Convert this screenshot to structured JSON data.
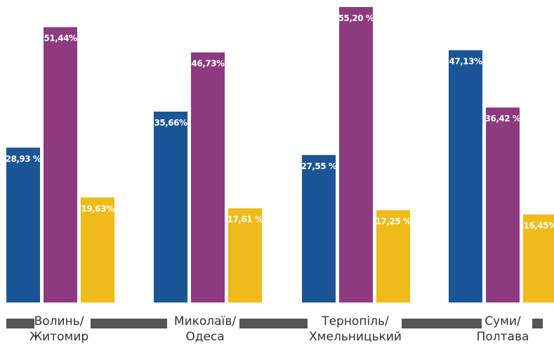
{
  "chart_data": {
    "type": "bar",
    "categories": [
      [
        "Волинь/",
        "Житомир"
      ],
      [
        "Миколаїв/",
        "Одеса"
      ],
      [
        "Тернопіль/",
        "Хмельницький"
      ],
      [
        "Суми/",
        "Полтава"
      ]
    ],
    "series": [
      {
        "color": "#1a5596",
        "values": [
          28.93,
          35.66,
          27.55,
          47.13
        ],
        "labels": [
          "28,93 %",
          "35,66%",
          "27,55 %",
          "47,13%"
        ]
      },
      {
        "color": "#8e3a7e",
        "values": [
          51.44,
          46.73,
          55.2,
          36.42
        ],
        "labels": [
          "51,44%",
          "46,73%",
          "55,20 %",
          "36,42 %"
        ]
      },
      {
        "color": "#f0bb18",
        "values": [
          19.63,
          17.61,
          17.25,
          16.45
        ],
        "labels": [
          "19,63%",
          "17,61 %",
          "17,25 %",
          "16,45%"
        ]
      }
    ],
    "ylim": [
      0,
      55.2
    ],
    "axis_color": "#555555",
    "grid": false,
    "legend": "none"
  }
}
